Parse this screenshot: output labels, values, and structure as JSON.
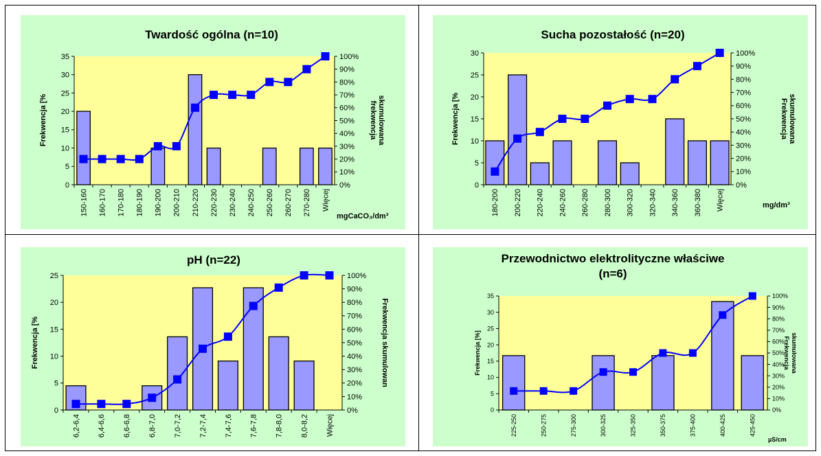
{
  "colors": {
    "panel_bg": "#ccffcc",
    "plot_bg": "#ffff99",
    "bar_fill": "#9999ff",
    "bar_stroke": "#000000",
    "line": "#0000ff",
    "marker": "#0000ff"
  },
  "chart_data": [
    {
      "type": "bar",
      "title": "Twardość ogólna (n=10)",
      "categories": [
        "150-160",
        "160-170",
        "170-180",
        "180-190",
        "190-200",
        "200-210",
        "210-220",
        "220-230",
        "230-240",
        "240-250",
        "250-260",
        "260-270",
        "270-280",
        "Więcej"
      ],
      "series": [
        {
          "values": [
            20,
            0,
            0,
            0,
            10,
            0,
            30,
            10,
            0,
            0,
            10,
            0,
            10,
            10
          ]
        },
        {
          "values": [
            20,
            20,
            20,
            20,
            30,
            30,
            60,
            70,
            70,
            70,
            80,
            80,
            90,
            100
          ]
        }
      ],
      "ylabel": "Frekwencja [%",
      "y2label": [
        "frekwencja",
        "skumulowana"
      ],
      "xlabel": "mgCaCO₃/dm³",
      "ylim": [
        0,
        35
      ],
      "yticks": [
        "0",
        "5",
        "10",
        "15",
        "20",
        "25",
        "30",
        "35"
      ],
      "y2lim": [
        0,
        100
      ],
      "y2ticks": [
        "0%",
        "10%",
        "20%",
        "30%",
        "40%",
        "50%",
        "60%",
        "70%",
        "80%",
        "90%",
        "100%"
      ]
    },
    {
      "type": "bar",
      "title": "Sucha pozostałość (n=20)",
      "categories": [
        "180-200",
        "200-220",
        "220-240",
        "240-260",
        "260-280",
        "280-300",
        "300-320",
        "320-340",
        "340-360",
        "360-380",
        "Więcej"
      ],
      "series": [
        {
          "values": [
            10,
            25,
            5,
            10,
            0,
            10,
            5,
            0,
            15,
            10,
            10
          ]
        },
        {
          "values": [
            10,
            35,
            40,
            50,
            50,
            60,
            65,
            65,
            80,
            90,
            100
          ]
        }
      ],
      "ylabel": "Frekwencja [%",
      "y2label": [
        "Frekwencja",
        "skumulowana"
      ],
      "xlabel": "mg/dm³",
      "ylim": [
        0,
        30
      ],
      "yticks": [
        "0",
        "5",
        "10",
        "15",
        "20",
        "25",
        "30"
      ],
      "y2lim": [
        0,
        100
      ],
      "y2ticks": [
        "0%",
        "10%",
        "20%",
        "30%",
        "40%",
        "50%",
        "60%",
        "70%",
        "80%",
        "90%",
        "100%"
      ]
    },
    {
      "type": "bar",
      "title": "pH (n=22)",
      "categories": [
        "6,2-6,4",
        "6,4-6,6",
        "6,6-6,8",
        "6,8-7,0",
        "7,0-7,2",
        "7,2-7,4",
        "7,4-7,6",
        "7,6-7,8",
        "7,8-8,0",
        "8,0-8,2",
        "Więcej"
      ],
      "series": [
        {
          "values": [
            4.5,
            0,
            0,
            4.5,
            13.6,
            22.7,
            9.1,
            22.7,
            13.6,
            9.1,
            0
          ]
        },
        {
          "values": [
            4.5,
            4.5,
            4.5,
            9.1,
            22.7,
            45.5,
            54.5,
            77.3,
            90.9,
            100,
            100
          ]
        }
      ],
      "ylabel": "Frekwencja [%",
      "y2label": [
        "Frekwencja skumulowan"
      ],
      "xlabel": "",
      "ylim": [
        0,
        25
      ],
      "yticks": [
        "0",
        "5",
        "10",
        "15",
        "20",
        "25"
      ],
      "y2lim": [
        0,
        100
      ],
      "y2ticks": [
        "0%",
        "10%",
        "20%",
        "30%",
        "40%",
        "50%",
        "60%",
        "70%",
        "80%",
        "90%",
        "100%"
      ]
    },
    {
      "type": "bar",
      "title": "Przewodnictwo elektrolityczne właściwe",
      "subtitle": "(n=6)",
      "categories": [
        "225-250",
        "250-275",
        "275-300",
        "300-325",
        "325-350",
        "350-375",
        "375-400",
        "400-425",
        "425-450"
      ],
      "series": [
        {
          "values": [
            16.7,
            0,
            0,
            16.7,
            0,
            16.7,
            0,
            33.3,
            16.7
          ]
        },
        {
          "values": [
            16.7,
            16.7,
            16.7,
            33.3,
            33.3,
            50,
            50,
            83.3,
            100
          ]
        }
      ],
      "ylabel": "Frekwencja [%]",
      "y2label": [
        "Frekwencja",
        "skumulowana"
      ],
      "xlabel": "µS/cm",
      "ylim": [
        0,
        35
      ],
      "yticks": [
        "0",
        "5",
        "10",
        "15",
        "20",
        "25",
        "30",
        "35"
      ],
      "y2lim": [
        0,
        100
      ],
      "y2ticks": [
        "0%",
        "10%",
        "20%",
        "30%",
        "40%",
        "50%",
        "60%",
        "70%",
        "80%",
        "90%",
        "100%"
      ]
    }
  ]
}
